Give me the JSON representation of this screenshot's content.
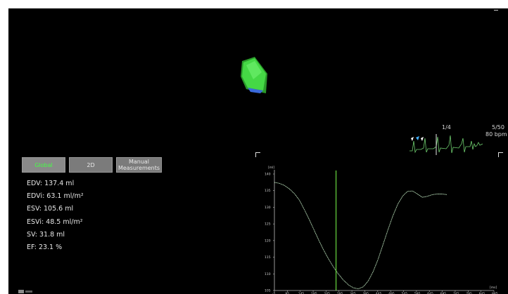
{
  "ecg": {
    "beat": "1/4",
    "frame": "5/50",
    "heart_rate": "80 bpm"
  },
  "tabs": [
    {
      "label": "Global",
      "active": true
    },
    {
      "label": "2D",
      "active": false
    },
    {
      "label": "Manual Measurements",
      "active": false
    }
  ],
  "measurements": [
    "EDV: 137.4 ml",
    "EDVi: 63.1 ml/m²",
    "ESV: 105.6 ml",
    "ESVi: 48.5 ml/m²",
    "SV: 31.8 ml",
    "EF: 23.1 %"
  ],
  "colors": {
    "background": "#000000",
    "curve": "#c8f0c8",
    "cursor": "#7cff4a",
    "model": "#3fcf3f",
    "active_tab_text": "#44ff44",
    "tab": "#7b7b7b"
  },
  "chart_data": {
    "type": "line",
    "ylabel": "[ml]",
    "xlabel": "[ms]",
    "ylim": [
      105,
      140
    ],
    "xlim": [
      -5,
      885
    ],
    "y_ticks": [
      "105",
      "110",
      "115",
      "120",
      "125",
      "130",
      "135",
      "140"
    ],
    "x_ticks": [
      "-5",
      "95",
      "145",
      "195",
      "245",
      "295",
      "345",
      "395",
      "445",
      "495",
      "545",
      "595",
      "645",
      "695",
      "745",
      "795",
      "845",
      "885"
    ],
    "cursor_x": 245,
    "series": [
      {
        "x": [
          -5,
          15,
          35,
          55,
          75,
          95,
          115,
          135,
          155,
          175,
          195,
          215,
          235,
          255,
          275,
          295,
          315,
          335,
          355,
          375,
          395,
          415,
          435,
          455,
          475,
          495,
          515,
          535,
          555,
          575,
          595,
          615,
          635,
          655,
          675,
          695
        ],
        "y": [
          137.5,
          137.2,
          136.6,
          135.6,
          134.2,
          132.3,
          129.5,
          126.5,
          123.3,
          120.1,
          117.1,
          114.4,
          112.0,
          109.9,
          108.1,
          106.7,
          105.8,
          105.5,
          106.1,
          107.8,
          110.6,
          114.3,
          118.7,
          123.2,
          127.4,
          130.9,
          133.4,
          134.8,
          134.9,
          134.0,
          133.0,
          133.3,
          133.8,
          134.0,
          134.0,
          133.8
        ]
      }
    ]
  }
}
